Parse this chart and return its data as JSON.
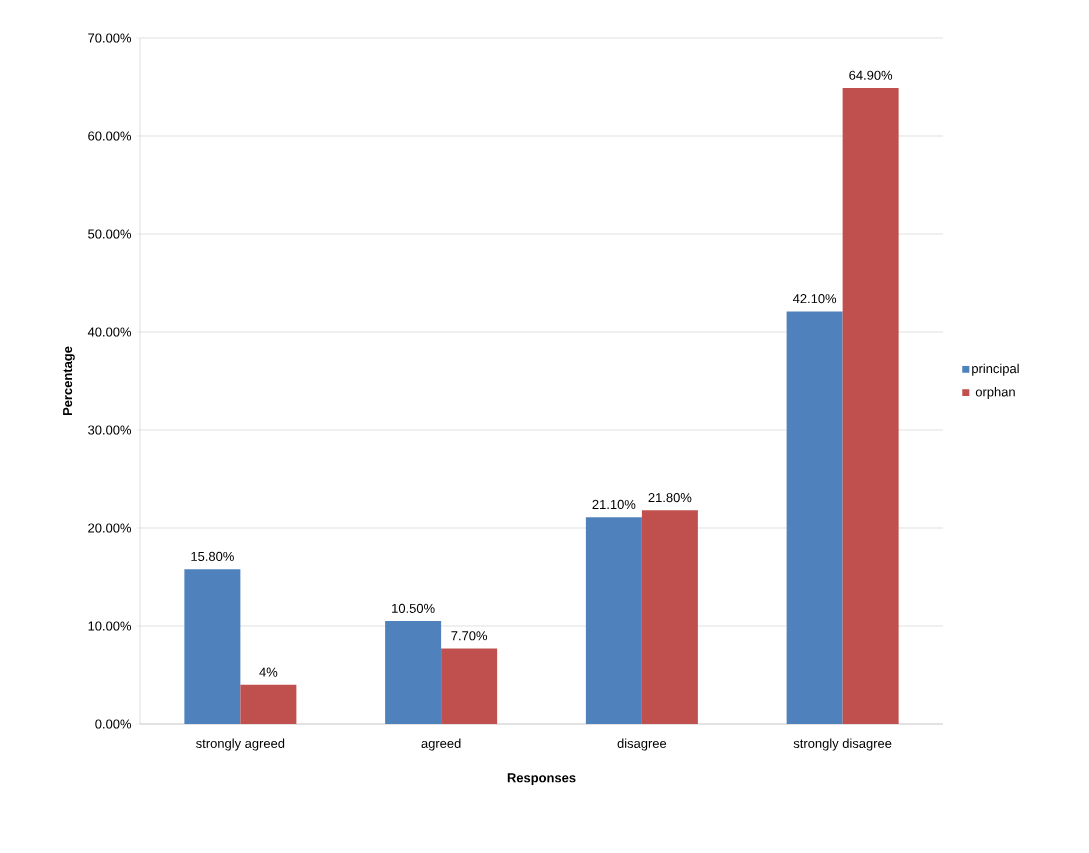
{
  "chart_data": {
    "type": "bar",
    "xlabel": "Responses",
    "ylabel": "Percentage",
    "categories": [
      "strongly agreed",
      "agreed",
      "disagree",
      "strongly disagree"
    ],
    "series": [
      {
        "name": "principal",
        "color": "#4f81bd",
        "values": [
          15.8,
          10.5,
          21.1,
          42.1
        ],
        "value_labels": [
          "15.80%",
          "10.50%",
          "21.10%",
          "42.10%"
        ]
      },
      {
        "name": "orphan",
        "color": "#c0504d",
        "values": [
          4,
          7.7,
          21.8,
          64.9
        ],
        "value_labels": [
          "4%",
          "7.70%",
          "21.80%",
          "64.90%"
        ]
      }
    ],
    "ylim": [
      0,
      70
    ],
    "yticks": [
      {
        "value": 0,
        "label": "0.00%"
      },
      {
        "value": 10,
        "label": "10.00%"
      },
      {
        "value": 20,
        "label": "20.00%"
      },
      {
        "value": 30,
        "label": "30.00%"
      },
      {
        "value": 40,
        "label": "40.00%"
      },
      {
        "value": 50,
        "label": "50.00%"
      },
      {
        "value": 60,
        "label": "60.00%"
      },
      {
        "value": 70,
        "label": "70.00%"
      }
    ],
    "grid": "y",
    "legend": "right"
  }
}
